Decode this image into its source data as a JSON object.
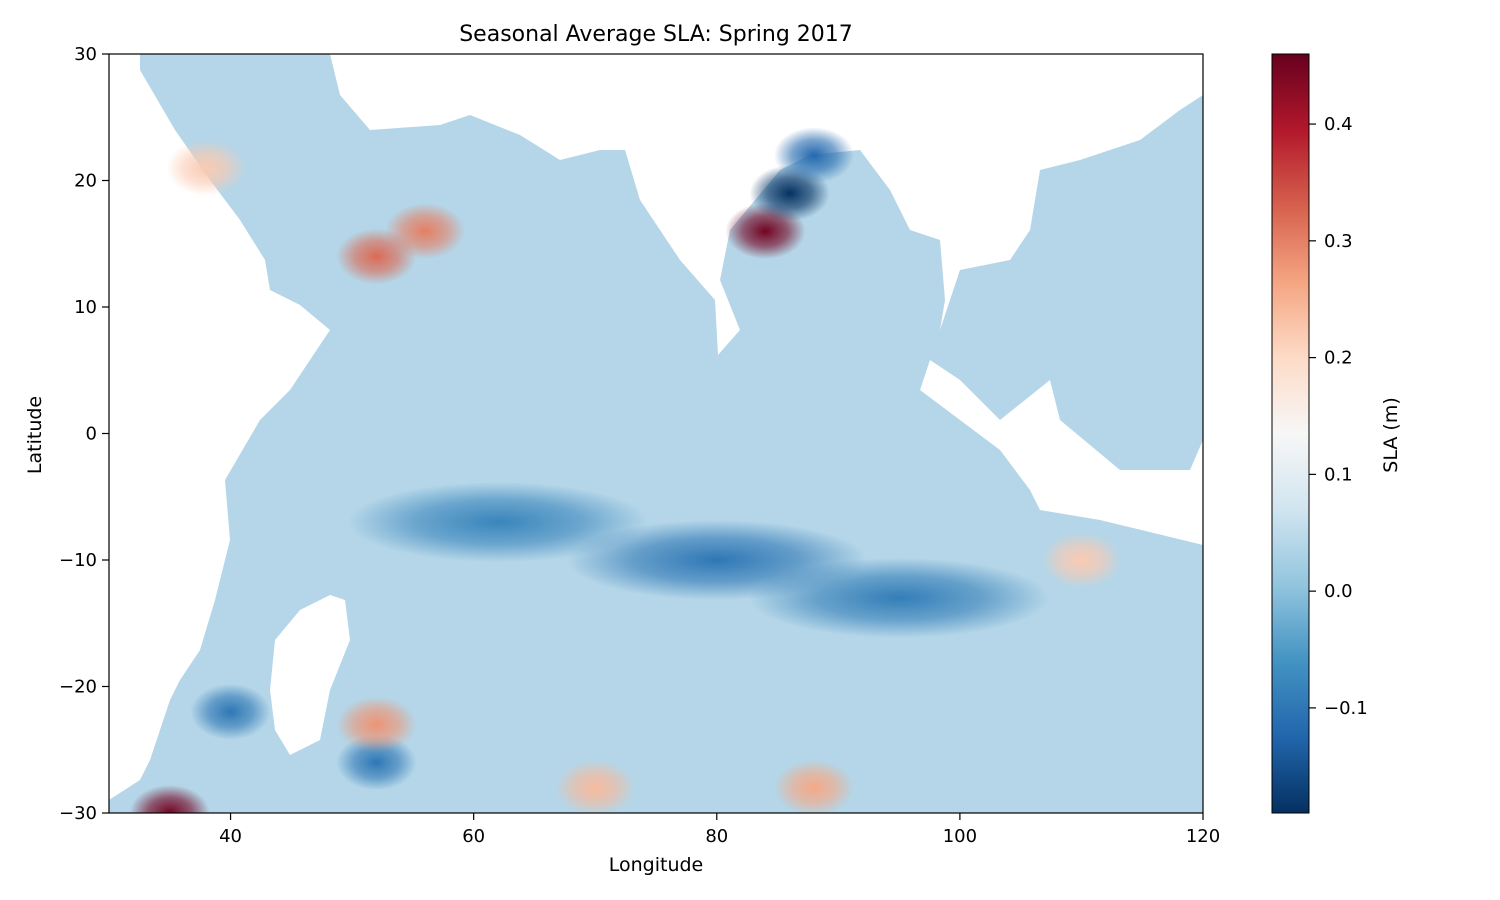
{
  "chart_data": {
    "type": "heatmap",
    "title": "Seasonal Average SLA: Spring 2017",
    "xlabel": "Longitude",
    "ylabel": "Latitude",
    "xlim": [
      30,
      120
    ],
    "ylim": [
      -30,
      30
    ],
    "x_ticks": [
      40,
      60,
      80,
      100,
      120
    ],
    "y_ticks": [
      -30,
      -20,
      -10,
      0,
      10,
      20,
      30
    ],
    "colorbar": {
      "label": "SLA (m)",
      "min": -0.19,
      "max": 0.46,
      "ticks": [
        -0.1,
        0.0,
        0.1,
        0.2,
        0.3,
        0.4
      ],
      "colormap": "RdBu_r",
      "colors": [
        "#053061",
        "#2166ac",
        "#4393c3",
        "#92c5de",
        "#d1e5f0",
        "#f7f7f7",
        "#fddbc7",
        "#f4a582",
        "#d6604d",
        "#b2182b",
        "#67001f"
      ]
    },
    "background_level": 0.04,
    "features": [
      {
        "name": "equatorial counter-current trough",
        "lon": 80,
        "lat": -10,
        "value": -0.1
      },
      {
        "name": "southern trough",
        "lon": 95,
        "lat": -13,
        "value": -0.09
      },
      {
        "name": "western trough",
        "lon": 62,
        "lat": -7,
        "value": -0.08
      },
      {
        "name": "bay of bengal high",
        "lon": 84,
        "lat": 16,
        "value": 0.45
      },
      {
        "name": "bay of bengal low",
        "lon": 86,
        "lat": 19,
        "value": -0.19
      },
      {
        "name": "northern bay low",
        "lon": 88,
        "lat": 22,
        "value": -0.12
      },
      {
        "name": "arabian sea high",
        "lon": 56,
        "lat": 16,
        "value": 0.3
      },
      {
        "name": "arabian sea high 2",
        "lon": 52,
        "lat": 14,
        "value": 0.32
      },
      {
        "name": "red sea positive",
        "lon": 38,
        "lat": 21,
        "value": 0.22
      },
      {
        "name": "southeast positive",
        "lon": 110,
        "lat": -10,
        "value": 0.22
      },
      {
        "name": "southwest high",
        "lon": 35,
        "lat": -30,
        "value": 0.45
      },
      {
        "name": "mozambique low",
        "lon": 40,
        "lat": -22,
        "value": -0.1
      },
      {
        "name": "south low",
        "lon": 52,
        "lat": -26,
        "value": -0.1
      },
      {
        "name": "south high",
        "lon": 52,
        "lat": -23,
        "value": 0.28
      },
      {
        "name": "south band high",
        "lon": 70,
        "lat": -28,
        "value": 0.24
      },
      {
        "name": "south band high 2",
        "lon": 88,
        "lat": -28,
        "value": 0.26
      }
    ],
    "land": [
      "Africa",
      "Arabian Peninsula",
      "Madagascar",
      "Indian subcontinent",
      "Southeast Asia",
      "Sumatra",
      "Australia"
    ]
  }
}
